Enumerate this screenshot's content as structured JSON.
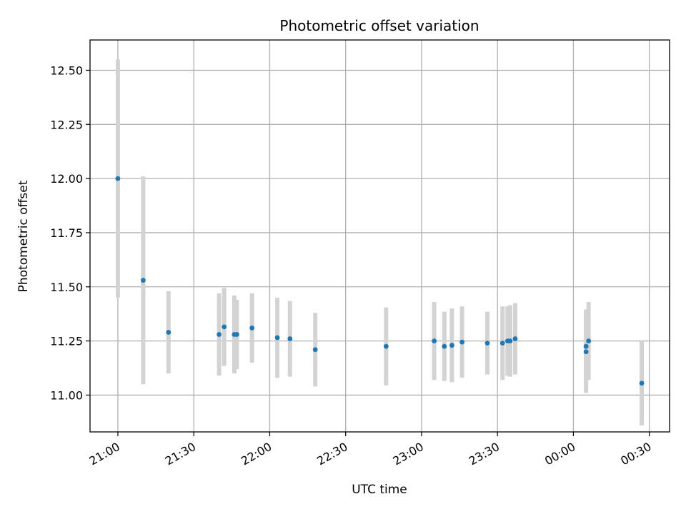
{
  "chart_data": {
    "type": "scatter",
    "title": "Photometric offset variation",
    "xlabel": "UTC time",
    "ylabel": "Photometric offset",
    "x_unit": "time (HH:MM UTC)",
    "xlim": [
      "20:49",
      "00:38"
    ],
    "ylim": [
      10.83,
      12.64
    ],
    "grid": true,
    "x_ticks": [
      {
        "time": "21:00",
        "label": "21:00"
      },
      {
        "time": "21:30",
        "label": "21:30"
      },
      {
        "time": "22:00",
        "label": "22:00"
      },
      {
        "time": "22:30",
        "label": "22:30"
      },
      {
        "time": "23:00",
        "label": "23:00"
      },
      {
        "time": "23:30",
        "label": "23:30"
      },
      {
        "time": "00:00",
        "label": "00:00"
      },
      {
        "time": "00:30",
        "label": "00:30"
      }
    ],
    "y_ticks": [
      {
        "value": 11.0,
        "label": "11.00"
      },
      {
        "value": 11.25,
        "label": "11.25"
      },
      {
        "value": 11.5,
        "label": "11.50"
      },
      {
        "value": 11.75,
        "label": "11.75"
      },
      {
        "value": 12.0,
        "label": "12.00"
      },
      {
        "value": 12.25,
        "label": "12.25"
      },
      {
        "value": 12.5,
        "label": "12.50"
      }
    ],
    "marker_color": "#1f77b4",
    "errorbar_color": "#d3d3d3",
    "points": [
      {
        "time": "21:00",
        "y": 12.0,
        "err": 0.55
      },
      {
        "time": "21:10",
        "y": 11.53,
        "err": 0.48
      },
      {
        "time": "21:20",
        "y": 11.29,
        "err": 0.19
      },
      {
        "time": "21:40",
        "y": 11.28,
        "err": 0.19
      },
      {
        "time": "21:42",
        "y": 11.315,
        "err": 0.18
      },
      {
        "time": "21:46",
        "y": 11.28,
        "err": 0.18
      },
      {
        "time": "21:47",
        "y": 11.28,
        "err": 0.16
      },
      {
        "time": "21:53",
        "y": 11.31,
        "err": 0.16
      },
      {
        "time": "22:03",
        "y": 11.265,
        "err": 0.185
      },
      {
        "time": "22:08",
        "y": 11.26,
        "err": 0.175
      },
      {
        "time": "22:18",
        "y": 11.21,
        "err": 0.17
      },
      {
        "time": "22:46",
        "y": 11.225,
        "err": 0.18
      },
      {
        "time": "23:05",
        "y": 11.25,
        "err": 0.18
      },
      {
        "time": "23:09",
        "y": 11.225,
        "err": 0.16
      },
      {
        "time": "23:12",
        "y": 11.23,
        "err": 0.17
      },
      {
        "time": "23:16",
        "y": 11.245,
        "err": 0.165
      },
      {
        "time": "23:26",
        "y": 11.24,
        "err": 0.145
      },
      {
        "time": "23:32",
        "y": 11.24,
        "err": 0.17
      },
      {
        "time": "23:34",
        "y": 11.25,
        "err": 0.16
      },
      {
        "time": "23:35",
        "y": 11.25,
        "err": 0.165
      },
      {
        "time": "23:37",
        "y": 11.26,
        "err": 0.165
      },
      {
        "time": "00:05",
        "y": 11.2,
        "err": 0.19
      },
      {
        "time": "00:05",
        "y": 11.225,
        "err": 0.17
      },
      {
        "time": "00:06",
        "y": 11.25,
        "err": 0.18
      },
      {
        "time": "00:27",
        "y": 11.055,
        "err": 0.195
      }
    ]
  }
}
